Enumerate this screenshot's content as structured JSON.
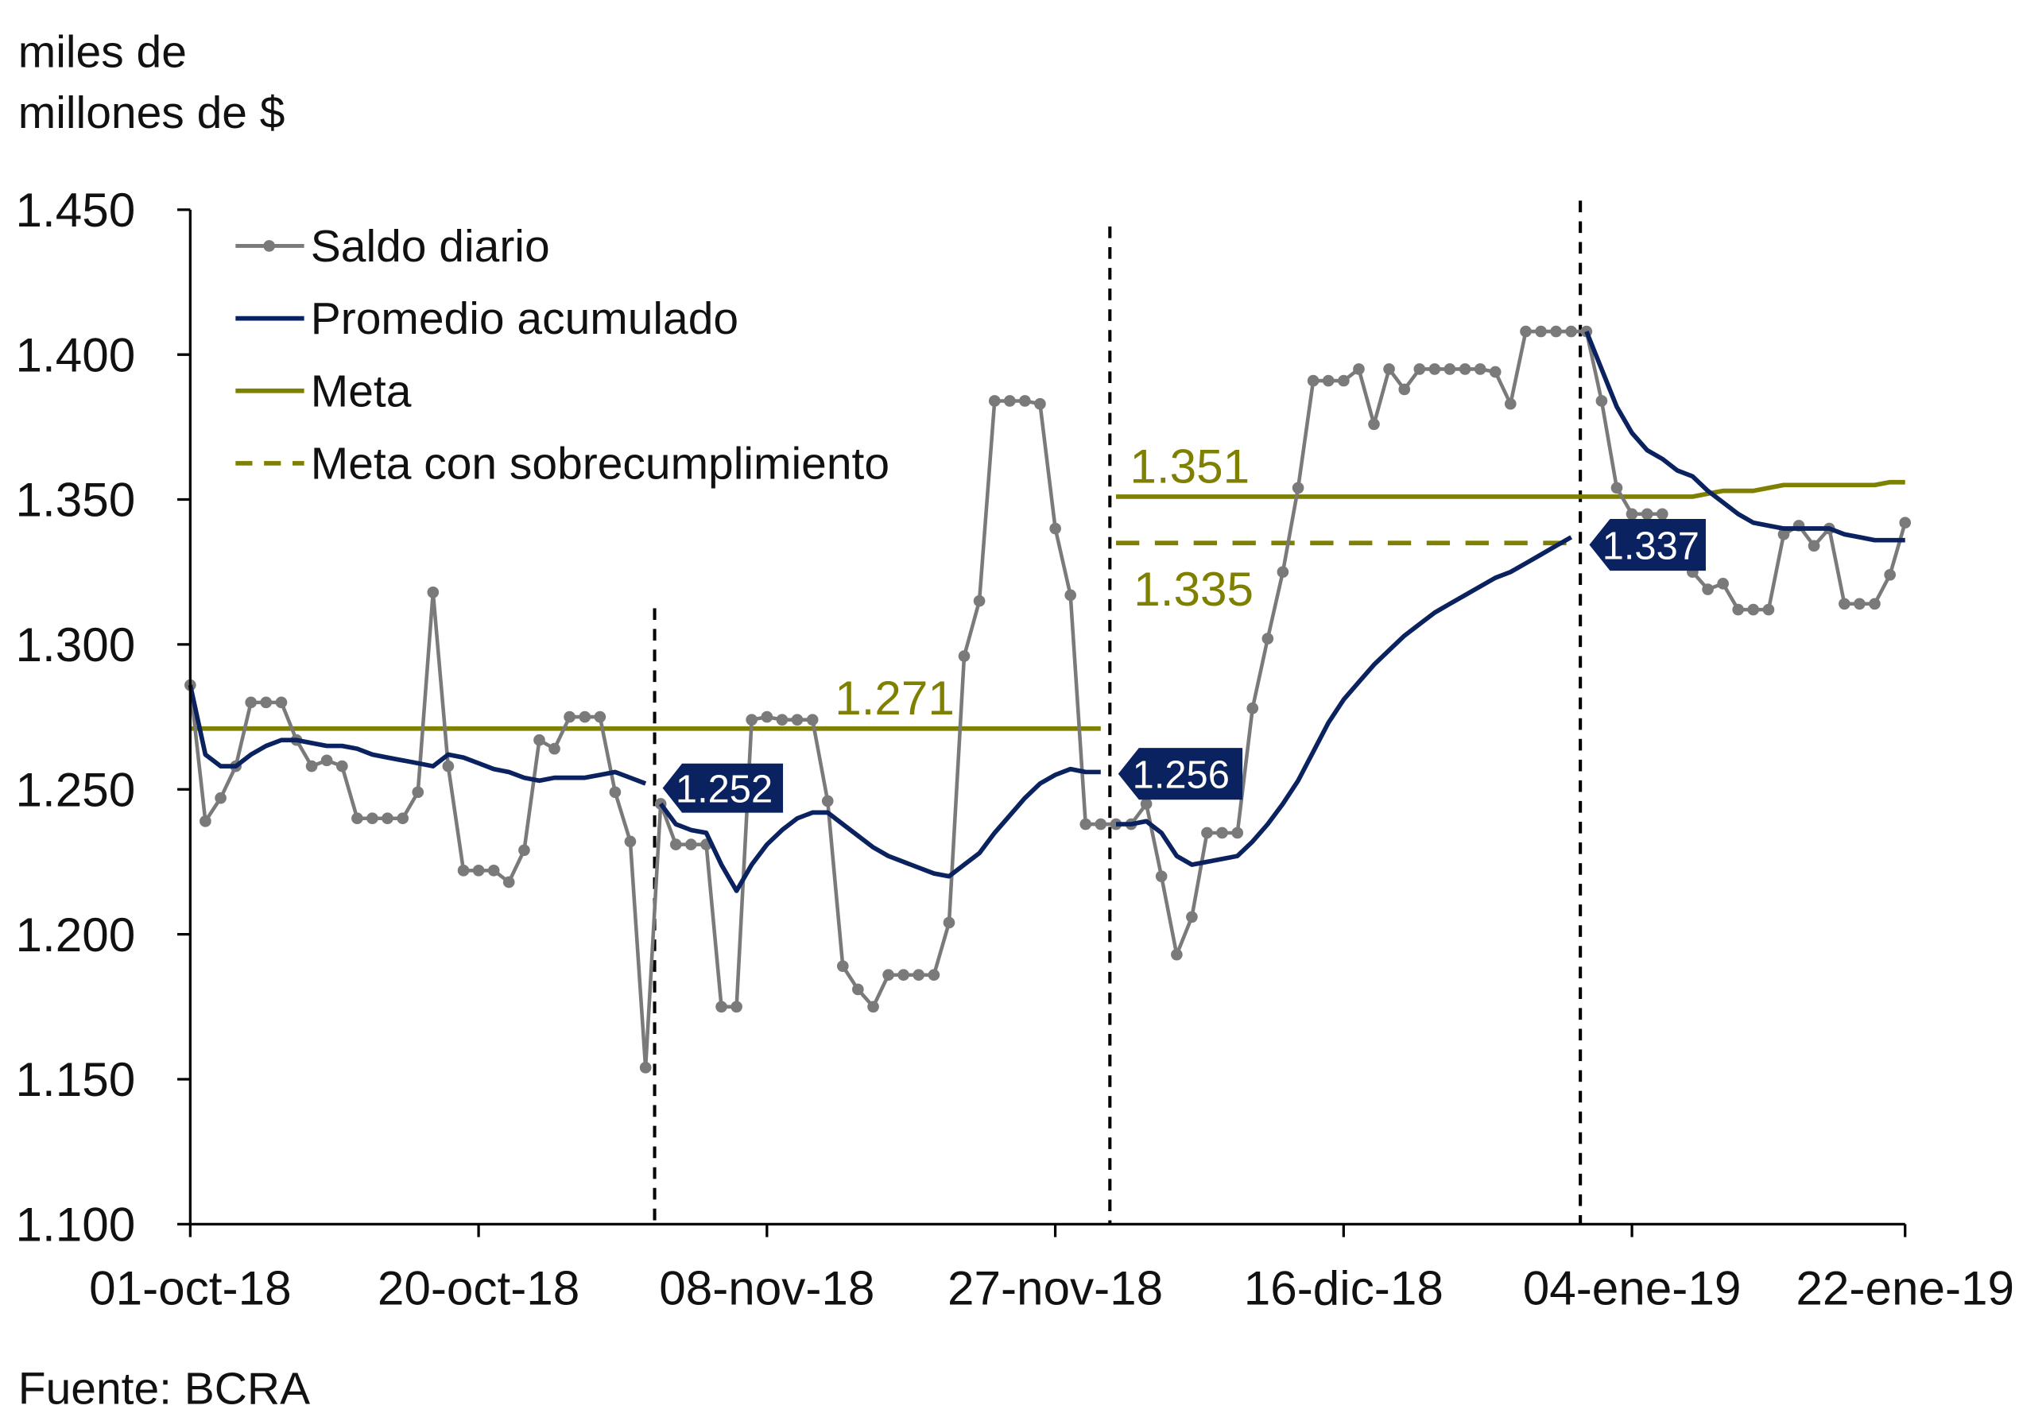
{
  "chart_data": {
    "type": "line",
    "unit_label": [
      "miles de",
      "millones de $"
    ],
    "source": "Fuente: BCRA",
    "xlim": [
      "2018-10-01",
      "2019-01-22"
    ],
    "ylim": [
      1100,
      1450
    ],
    "yticks": [
      1100,
      1150,
      1200,
      1250,
      1300,
      1350,
      1400,
      1450
    ],
    "ytick_labels": [
      "1.100",
      "1.150",
      "1.200",
      "1.250",
      "1.300",
      "1.350",
      "1.400",
      "1.450"
    ],
    "xticks": [
      "2018-10-01",
      "2018-10-20",
      "2018-11-08",
      "2018-11-27",
      "2018-12-16",
      "2019-01-04",
      "2019-01-22"
    ],
    "xtick_labels": [
      "01-oct-18",
      "20-oct-18",
      "08-nov-18",
      "27-nov-18",
      "16-dic-18",
      "04-ene-19",
      "22-ene-19"
    ],
    "grid": false,
    "legend_position": "top-left",
    "colors": {
      "saldo": "#7a7a7a",
      "promedio": "#0b2260",
      "meta": "#7f7f00",
      "axis": "#000000"
    },
    "period_dividers": [
      "2018-10-31",
      "2018-11-30",
      "2018-12-31"
    ],
    "series": [
      {
        "name": "Saldo diario",
        "style": "line-markers",
        "segments": [
          {
            "start": "2018-10-01",
            "values": [
              1286,
              1239,
              1247,
              1258,
              1280,
              1280,
              1280,
              1267,
              1258,
              1260,
              1258,
              1240,
              1240,
              1240,
              1240,
              1249,
              1318,
              1258,
              1222,
              1222,
              1222,
              1218,
              1229,
              1267,
              1264,
              1275,
              1275,
              1275,
              1249,
              1232,
              1154,
              1245,
              1231,
              1231,
              1231,
              1175,
              1175,
              1274,
              1275,
              1274,
              1274,
              1274,
              1246,
              1189,
              1181,
              1175,
              1186,
              1186,
              1186,
              1186,
              1204,
              1296,
              1315,
              1384,
              1384,
              1384,
              1383,
              1340,
              1317,
              1238,
              1238,
              1238,
              1238,
              1245,
              1220,
              1193,
              1206,
              1235,
              1235,
              1235,
              1278,
              1302,
              1325,
              1354,
              1391,
              1391,
              1391,
              1395,
              1376,
              1395,
              1388,
              1395,
              1395,
              1395,
              1395,
              1395,
              1394,
              1383,
              1408,
              1408,
              1408,
              1408,
              1408,
              1384,
              1354,
              1345,
              1345,
              1345,
              1330,
              1325,
              1319,
              1321,
              1312,
              1312,
              1312,
              1338,
              1341,
              1334,
              1340,
              1314,
              1314,
              1314,
              1324,
              1342
            ]
          }
        ]
      },
      {
        "name": "Promedio acumulado",
        "style": "line",
        "segments": [
          {
            "start": "2018-10-01",
            "values": [
              1286,
              1262,
              1258,
              1258,
              1262,
              1265,
              1267,
              1267,
              1266,
              1265,
              1265,
              1264,
              1262,
              1261,
              1260,
              1259,
              1258,
              1262,
              1261,
              1259,
              1257,
              1256,
              1254,
              1253,
              1254,
              1254,
              1254,
              1255,
              1256,
              1254,
              1252
            ]
          },
          {
            "start": "2018-11-01",
            "values": [
              1245,
              1238,
              1236,
              1235,
              1224,
              1215,
              1224,
              1231,
              1236,
              1240,
              1242,
              1242,
              1238,
              1234,
              1230,
              1227,
              1225,
              1223,
              1221,
              1220,
              1224,
              1228,
              1235,
              1241,
              1247,
              1252,
              1255,
              1257,
              1256,
              1256
            ]
          },
          {
            "start": "2018-12-01",
            "values": [
              1238,
              1238,
              1239,
              1235,
              1227,
              1224,
              1225,
              1226,
              1227,
              1232,
              1238,
              1245,
              1253,
              1263,
              1273,
              1281,
              1287,
              1293,
              1298,
              1303,
              1307,
              1311,
              1314,
              1317,
              1320,
              1323,
              1325,
              1328,
              1331,
              1334,
              1337
            ]
          },
          {
            "start": "2019-01-01",
            "values": [
              1408,
              1395,
              1382,
              1373,
              1367,
              1364,
              1360,
              1358,
              1353,
              1349,
              1345,
              1342,
              1341,
              1340,
              1340,
              1340,
              1340,
              1338,
              1337,
              1336,
              1336,
              1336
            ]
          }
        ]
      },
      {
        "name": "Meta",
        "style": "line",
        "segments": [
          {
            "start": "2018-10-01",
            "values": [
              1271,
              1271,
              1271,
              1271,
              1271,
              1271,
              1271,
              1271,
              1271,
              1271,
              1271,
              1271,
              1271,
              1271,
              1271,
              1271,
              1271,
              1271,
              1271,
              1271,
              1271,
              1271,
              1271,
              1271,
              1271,
              1271,
              1271,
              1271,
              1271,
              1271,
              1271,
              1271,
              1271,
              1271,
              1271,
              1271,
              1271,
              1271,
              1271,
              1271,
              1271,
              1271,
              1271,
              1271,
              1271,
              1271,
              1271,
              1271,
              1271,
              1271,
              1271,
              1271,
              1271,
              1271,
              1271,
              1271,
              1271,
              1271,
              1271,
              1271,
              1271
            ]
          },
          {
            "start": "2018-12-01",
            "values": [
              1351,
              1351,
              1351,
              1351,
              1351,
              1351,
              1351,
              1351,
              1351,
              1351,
              1351,
              1351,
              1351,
              1351,
              1351,
              1351,
              1351,
              1351,
              1351,
              1351,
              1351,
              1351,
              1351,
              1351,
              1351,
              1351,
              1351,
              1351,
              1351,
              1351,
              1351,
              1351,
              1351,
              1351,
              1351,
              1351,
              1351,
              1351,
              1351,
              1352,
              1353,
              1353,
              1353,
              1354,
              1355,
              1355,
              1355,
              1355,
              1355,
              1355,
              1355,
              1356,
              1356
            ]
          }
        ]
      },
      {
        "name": "Meta con sobrecumplimiento",
        "style": "dashed",
        "segments": [
          {
            "start": "2018-12-01",
            "values": [
              1335,
              1335,
              1335,
              1335,
              1335,
              1335,
              1335,
              1335,
              1335,
              1335,
              1335,
              1335,
              1335,
              1335,
              1335,
              1335,
              1335,
              1335,
              1335,
              1335,
              1335,
              1335,
              1335,
              1335,
              1335,
              1335,
              1335,
              1335,
              1335,
              1335,
              1335
            ]
          }
        ]
      }
    ],
    "annotations": {
      "meta_oct_nov": "1.271",
      "meta_dic_ene": "1.351",
      "meta_sobre_dic": "1.335",
      "promedio_oct": "1.252",
      "promedio_nov": "1.256",
      "promedio_dic": "1.337"
    }
  }
}
